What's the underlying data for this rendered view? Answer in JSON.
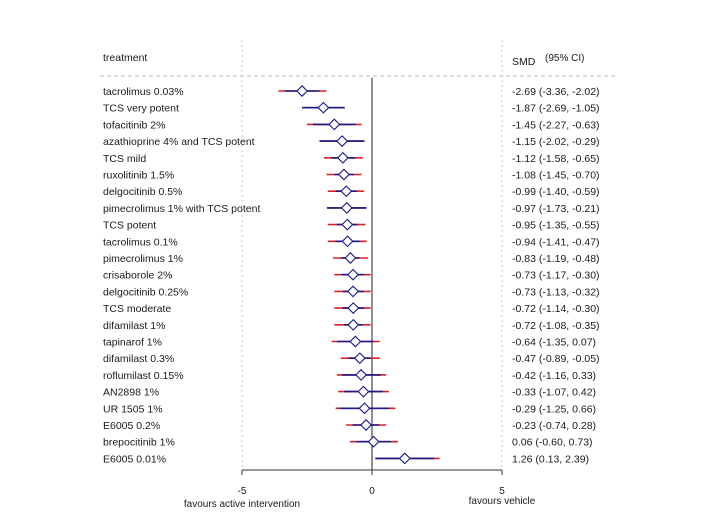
{
  "chart_data": {
    "type": "forest",
    "headers": {
      "treatment": "treatment",
      "smd": "SMD",
      "ci": "(95% CI)"
    },
    "xaxis": {
      "ticks": [
        -5,
        0,
        5
      ],
      "tick_labels": [
        "-5",
        "0",
        "5"
      ],
      "left_label": "favours active intervention",
      "right_label": "favours vehicle",
      "range": [
        -5,
        5
      ]
    },
    "rows": [
      {
        "treatment": "tacrolimus 0.03%",
        "smd": -2.69,
        "ci_low": -3.36,
        "ci_high": -2.02,
        "pi_low": -3.6,
        "pi_high": -1.75,
        "label": "-2.69 (-3.36, -2.02)"
      },
      {
        "treatment": "TCS very potent",
        "smd": -1.87,
        "ci_low": -2.69,
        "ci_high": -1.05,
        "pi_low": -2.69,
        "pi_high": -1.05,
        "label": "-1.87 (-2.69, -1.05)"
      },
      {
        "treatment": "tofacitinib 2%",
        "smd": -1.45,
        "ci_low": -2.27,
        "ci_high": -0.63,
        "pi_low": -2.5,
        "pi_high": -0.4,
        "label": "-1.45 (-2.27, -0.63)"
      },
      {
        "treatment": "azathioprine 4% and TCS potent",
        "smd": -1.15,
        "ci_low": -2.02,
        "ci_high": -0.29,
        "pi_low": -2.02,
        "pi_high": -0.29,
        "label": "-1.15 (-2.02, -0.29)"
      },
      {
        "treatment": "TCS mild",
        "smd": -1.12,
        "ci_low": -1.58,
        "ci_high": -0.65,
        "pi_low": -1.85,
        "pi_high": -0.35,
        "label": "-1.12 (-1.58, -0.65)"
      },
      {
        "treatment": "ruxolitinib 1.5%",
        "smd": -1.08,
        "ci_low": -1.45,
        "ci_high": -0.7,
        "pi_low": -1.75,
        "pi_high": -0.4,
        "label": "-1.08 (-1.45, -0.70)"
      },
      {
        "treatment": "delgocitinib 0.5%",
        "smd": -0.99,
        "ci_low": -1.4,
        "ci_high": -0.59,
        "pi_low": -1.7,
        "pi_high": -0.3,
        "label": "-0.99 (-1.40, -0.59)"
      },
      {
        "treatment": "pimecrolimus 1% with TCS potent",
        "smd": -0.97,
        "ci_low": -1.73,
        "ci_high": -0.21,
        "pi_low": -1.73,
        "pi_high": -0.21,
        "label": "-0.97 (-1.73, -0.21)"
      },
      {
        "treatment": "TCS potent",
        "smd": -0.95,
        "ci_low": -1.35,
        "ci_high": -0.55,
        "pi_low": -1.7,
        "pi_high": -0.25,
        "label": "-0.95 (-1.35, -0.55)"
      },
      {
        "treatment": "tacrolimus 0.1%",
        "smd": -0.94,
        "ci_low": -1.41,
        "ci_high": -0.47,
        "pi_low": -1.7,
        "pi_high": -0.2,
        "label": "-0.94 (-1.41, -0.47)"
      },
      {
        "treatment": "pimecrolimus 1%",
        "smd": -0.83,
        "ci_low": -1.19,
        "ci_high": -0.48,
        "pi_low": -1.5,
        "pi_high": -0.15,
        "label": "-0.83 (-1.19, -0.48)"
      },
      {
        "treatment": "crisaborole 2%",
        "smd": -0.73,
        "ci_low": -1.17,
        "ci_high": -0.3,
        "pi_low": -1.45,
        "pi_high": -0.05,
        "label": "-0.73 (-1.17, -0.30)"
      },
      {
        "treatment": "delgocitinib 0.25%",
        "smd": -0.73,
        "ci_low": -1.13,
        "ci_high": -0.32,
        "pi_low": -1.45,
        "pi_high": -0.05,
        "label": "-0.73 (-1.13, -0.32)"
      },
      {
        "treatment": "TCS moderate",
        "smd": -0.72,
        "ci_low": -1.14,
        "ci_high": -0.3,
        "pi_low": -1.45,
        "pi_high": -0.05,
        "label": "-0.72 (-1.14, -0.30)"
      },
      {
        "treatment": "difamilast 1%",
        "smd": -0.72,
        "ci_low": -1.08,
        "ci_high": -0.35,
        "pi_low": -1.45,
        "pi_high": -0.05,
        "label": "-0.72 (-1.08, -0.35)"
      },
      {
        "treatment": "tapinarof 1%",
        "smd": -0.64,
        "ci_low": -1.35,
        "ci_high": 0.07,
        "pi_low": -1.55,
        "pi_high": 0.3,
        "label": "-0.64 (-1.35, 0.07)"
      },
      {
        "treatment": "difamilast 0.3%",
        "smd": -0.47,
        "ci_low": -0.89,
        "ci_high": -0.05,
        "pi_low": -1.2,
        "pi_high": 0.3,
        "label": "-0.47 (-0.89, -0.05)"
      },
      {
        "treatment": "roflumilast 0.15%",
        "smd": -0.42,
        "ci_low": -1.16,
        "ci_high": 0.33,
        "pi_low": -1.35,
        "pi_high": 0.55,
        "label": "-0.42 (-1.16, 0.33)"
      },
      {
        "treatment": "AN2898 1%",
        "smd": -0.33,
        "ci_low": -1.07,
        "ci_high": 0.42,
        "pi_low": -1.3,
        "pi_high": 0.65,
        "label": "-0.33 (-1.07, 0.42)"
      },
      {
        "treatment": "UR 1505 1%",
        "smd": -0.29,
        "ci_low": -1.25,
        "ci_high": 0.66,
        "pi_low": -1.4,
        "pi_high": 0.9,
        "label": "-0.29 (-1.25, 0.66)"
      },
      {
        "treatment": "E6005 0.2%",
        "smd": -0.23,
        "ci_low": -0.74,
        "ci_high": 0.28,
        "pi_low": -1.0,
        "pi_high": 0.55,
        "label": "-0.23 (-0.74, 0.28)"
      },
      {
        "treatment": "brepocitinib 1%",
        "smd": 0.06,
        "ci_low": -0.6,
        "ci_high": 0.73,
        "pi_low": -0.85,
        "pi_high": 1.0,
        "label": "0.06 (-0.60, 0.73)"
      },
      {
        "treatment": "E6005 0.01%",
        "smd": 1.26,
        "ci_low": 0.13,
        "ci_high": 2.39,
        "pi_low": 0.13,
        "pi_high": 2.6,
        "label": "1.26 (0.13, 2.39)"
      }
    ]
  },
  "colors": {
    "ci": "#1a1a8c",
    "pi": "#e02020",
    "marker": "#1a1a8c",
    "zero_line": "#333333",
    "grid": "#c8c8c8"
  }
}
